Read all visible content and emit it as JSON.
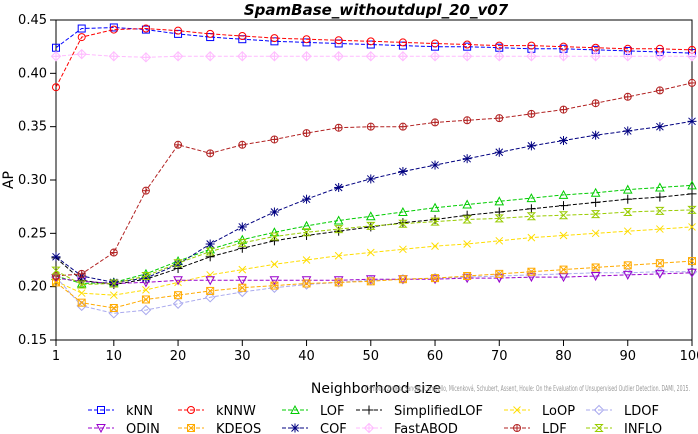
{
  "chart_data": {
    "type": "line",
    "title": "SpamBase_withoutdupl_20_v07",
    "xlabel": "Neighborhood size",
    "ylabel": "AP",
    "xlim": [
      1,
      100
    ],
    "ylim": [
      0.15,
      0.45
    ],
    "xticks": [
      1,
      10,
      20,
      30,
      40,
      50,
      60,
      70,
      80,
      90,
      100
    ],
    "xtick_labels": [
      "1",
      "10",
      "20",
      "30",
      "40",
      "50",
      "60",
      "70",
      "80",
      "90",
      "100"
    ],
    "yticks": [
      0.15,
      0.2,
      0.25,
      0.3,
      0.35,
      0.4,
      0.45
    ],
    "ytick_labels": [
      "0.15",
      "0.20",
      "0.25",
      "0.30",
      "0.35",
      "0.40",
      "0.45"
    ],
    "grid": false,
    "legend_placement": "bottom",
    "watermark": "Campos, Zimek, Sander, Campello, Micenková, Schubert, Assent, Houle: On the Evaluation of Unsupervised Outlier Detection. DAMI, 2015.",
    "x": [
      1,
      5,
      10,
      15,
      20,
      25,
      30,
      35,
      40,
      45,
      50,
      55,
      60,
      65,
      70,
      75,
      80,
      85,
      90,
      95,
      100
    ],
    "series": [
      {
        "name": "kNN",
        "color": "#0000ff",
        "marker": "square",
        "values": [
          0.424,
          0.442,
          0.443,
          0.441,
          0.437,
          0.434,
          0.432,
          0.43,
          0.429,
          0.428,
          0.427,
          0.426,
          0.425,
          0.425,
          0.424,
          0.423,
          0.423,
          0.422,
          0.421,
          0.42,
          0.419
        ]
      },
      {
        "name": "kNNW",
        "color": "#ff0000",
        "marker": "circle",
        "values": [
          0.387,
          0.434,
          0.441,
          0.442,
          0.44,
          0.437,
          0.435,
          0.433,
          0.432,
          0.431,
          0.43,
          0.429,
          0.428,
          0.427,
          0.426,
          0.426,
          0.425,
          0.424,
          0.423,
          0.423,
          0.422
        ]
      },
      {
        "name": "LOF",
        "color": "#00cc00",
        "marker": "triangle-up",
        "values": [
          0.21,
          0.203,
          0.204,
          0.212,
          0.224,
          0.235,
          0.244,
          0.251,
          0.257,
          0.262,
          0.266,
          0.27,
          0.274,
          0.277,
          0.28,
          0.283,
          0.286,
          0.288,
          0.291,
          0.293,
          0.295
        ]
      },
      {
        "name": "SimplifiedLOF",
        "color": "#000000",
        "marker": "plus",
        "values": [
          0.227,
          0.206,
          0.202,
          0.207,
          0.217,
          0.228,
          0.236,
          0.243,
          0.248,
          0.252,
          0.256,
          0.26,
          0.263,
          0.267,
          0.27,
          0.273,
          0.276,
          0.279,
          0.282,
          0.284,
          0.287
        ]
      },
      {
        "name": "LoOP",
        "color": "#ffdd00",
        "marker": "x",
        "values": [
          0.205,
          0.194,
          0.192,
          0.197,
          0.204,
          0.211,
          0.216,
          0.221,
          0.225,
          0.229,
          0.232,
          0.235,
          0.238,
          0.24,
          0.243,
          0.246,
          0.248,
          0.25,
          0.252,
          0.254,
          0.256
        ]
      },
      {
        "name": "LDOF",
        "color": "#aaaaee",
        "marker": "diamond",
        "values": [
          0.209,
          0.182,
          0.175,
          0.178,
          0.184,
          0.19,
          0.195,
          0.199,
          0.202,
          0.204,
          0.206,
          0.207,
          0.208,
          0.209,
          0.21,
          0.211,
          0.212,
          0.213,
          0.213,
          0.214,
          0.214
        ]
      },
      {
        "name": "ODIN",
        "color": "#9900cc",
        "marker": "triangle-down",
        "values": [
          0.208,
          0.205,
          0.203,
          0.204,
          0.206,
          0.206,
          0.206,
          0.206,
          0.206,
          0.206,
          0.207,
          0.207,
          0.207,
          0.208,
          0.208,
          0.209,
          0.209,
          0.21,
          0.211,
          0.212,
          0.213
        ]
      },
      {
        "name": "KDEOS",
        "color": "#ffaa00",
        "marker": "square-x",
        "values": [
          0.204,
          0.185,
          0.18,
          0.188,
          0.192,
          0.196,
          0.199,
          0.201,
          0.203,
          0.204,
          0.205,
          0.207,
          0.208,
          0.21,
          0.212,
          0.214,
          0.216,
          0.218,
          0.22,
          0.222,
          0.224
        ]
      },
      {
        "name": "COF",
        "color": "#000080",
        "marker": "asterisk",
        "values": [
          0.228,
          0.21,
          0.204,
          0.208,
          0.221,
          0.24,
          0.256,
          0.27,
          0.282,
          0.293,
          0.301,
          0.308,
          0.314,
          0.32,
          0.326,
          0.332,
          0.337,
          0.342,
          0.346,
          0.35,
          0.355
        ]
      },
      {
        "name": "FastABOD",
        "color": "#ffbbff",
        "marker": "diamond-plus",
        "values": [
          0.416,
          0.418,
          0.416,
          0.415,
          0.416,
          0.416,
          0.416,
          0.416,
          0.416,
          0.416,
          0.416,
          0.416,
          0.416,
          0.416,
          0.416,
          0.416,
          0.416,
          0.416,
          0.416,
          0.416,
          0.416
        ]
      },
      {
        "name": "LDF",
        "color": "#b22222",
        "marker": "circle-plus",
        "values": [
          0.21,
          0.212,
          0.232,
          0.29,
          0.333,
          0.325,
          0.333,
          0.338,
          0.344,
          0.349,
          0.35,
          0.35,
          0.354,
          0.356,
          0.358,
          0.362,
          0.366,
          0.372,
          0.378,
          0.384,
          0.391
        ]
      },
      {
        "name": "INFLO",
        "color": "#99cc00",
        "marker": "hourglass",
        "values": [
          0.215,
          0.202,
          0.203,
          0.21,
          0.222,
          0.233,
          0.241,
          0.247,
          0.251,
          0.254,
          0.257,
          0.259,
          0.261,
          0.263,
          0.264,
          0.266,
          0.267,
          0.268,
          0.27,
          0.271,
          0.272
        ]
      }
    ]
  }
}
